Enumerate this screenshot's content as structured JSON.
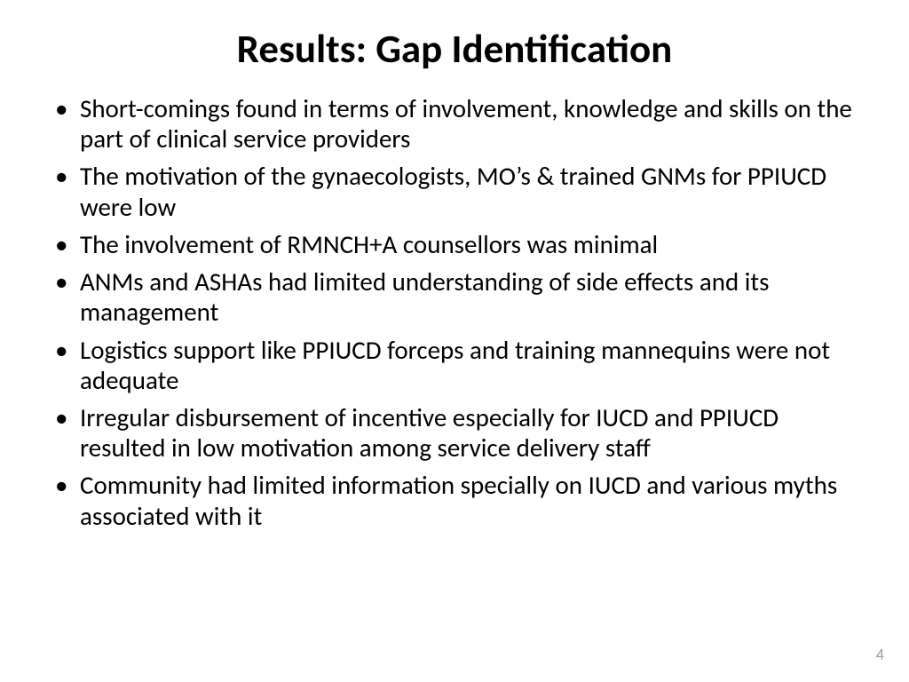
{
  "slide": {
    "title": "Results: Gap Identification",
    "title_fontsize": 45,
    "title_color": "#000000",
    "bullet_fontsize": 29,
    "bullet_color": "#000000",
    "background_color": "#ffffff",
    "bullets": [
      "Short-comings found in terms of involvement, knowledge and skills on the part of clinical service providers",
      "The motivation of the gynaecologists, MO’s & trained GNMs for PPIUCD were low",
      "The involvement of RMNCH+A counsellors was minimal",
      "ANMs and ASHAs had limited understanding of side effects and its management",
      "Logistics support like PPIUCD forceps and training mannequins were not adequate",
      "Irregular disbursement of incentive especially for IUCD and PPIUCD resulted in low motivation among service delivery staff",
      "Community had limited information specially on IUCD and various myths associated with it"
    ],
    "page_number": "4",
    "page_number_fontsize": 18,
    "page_number_color": "#9a9a9a"
  }
}
